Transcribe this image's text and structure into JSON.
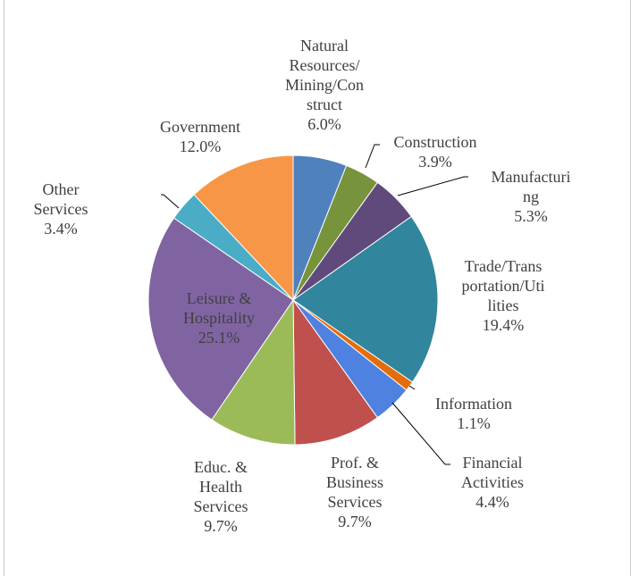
{
  "chart_data": {
    "type": "pie",
    "title": "",
    "slices": [
      {
        "label": "Natural Resources/Mining/Construct",
        "label_lines": [
          "Natural",
          "Resources/",
          "Mining/Con",
          "struct"
        ],
        "percent_label": "6.0%",
        "value": 6.0,
        "color": "#4f81bd"
      },
      {
        "label": "Construction",
        "label_lines": [
          "Construction"
        ],
        "percent_label": "3.9%",
        "value": 3.9,
        "color": "#77933c"
      },
      {
        "label": "Manufacturing",
        "label_lines": [
          "Manufacturi",
          "ng"
        ],
        "percent_label": "5.3%",
        "value": 5.3,
        "color": "#604a7b"
      },
      {
        "label": "Trade/Transportation/Utilities",
        "label_lines": [
          "Trade/Trans",
          "portation/Uti",
          "lities"
        ],
        "percent_label": "19.4%",
        "value": 19.4,
        "color": "#31859c"
      },
      {
        "label": "Information",
        "label_lines": [
          "Information"
        ],
        "percent_label": "1.1%",
        "value": 1.1,
        "color": "#e46c0a"
      },
      {
        "label": "Financial Activities",
        "label_lines": [
          "Financial",
          "Activities"
        ],
        "percent_label": "4.4%",
        "value": 4.4,
        "color": "#4f81e0"
      },
      {
        "label": "Prof. & Business Services",
        "label_lines": [
          "Prof. &",
          "Business",
          "Services"
        ],
        "percent_label": "9.7%",
        "value": 9.7,
        "color": "#c0504d"
      },
      {
        "label": "Educ. & Health Services",
        "label_lines": [
          "Educ. &",
          "Health",
          "Services"
        ],
        "percent_label": "9.7%",
        "value": 9.7,
        "color": "#9bbb59"
      },
      {
        "label": "Leisure & Hospitality",
        "label_lines": [
          "Leisure &",
          "Hospitality"
        ],
        "percent_label": "25.1%",
        "value": 25.1,
        "color": "#8064a2"
      },
      {
        "label": "Other Services",
        "label_lines": [
          "Other",
          "Services"
        ],
        "percent_label": "3.4%",
        "value": 3.4,
        "color": "#4bacc6"
      },
      {
        "label": "Government",
        "label_lines": [
          "Government"
        ],
        "percent_label": "12.0%",
        "value": 12.0,
        "color": "#f79646"
      }
    ],
    "total": 100,
    "start_angle_deg": 0,
    "direction": "clockwise",
    "legend": "none",
    "label_color": "#404040",
    "leader_line_color": "#000000"
  }
}
